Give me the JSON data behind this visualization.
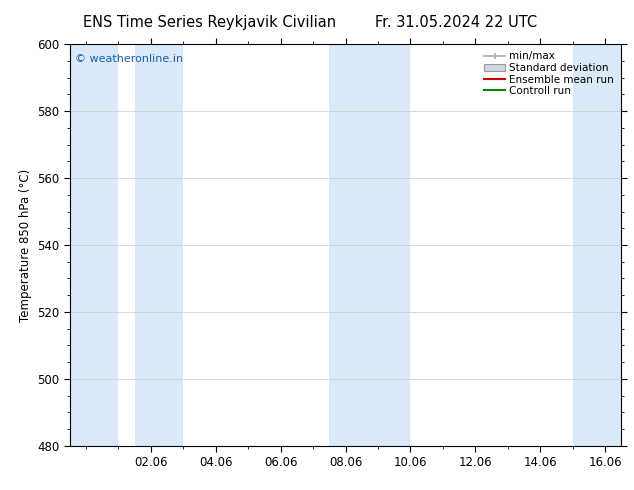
{
  "title_left": "ENS Time Series Reykjavik Civilian",
  "title_right": "Fr. 31.05.2024 22 UTC",
  "ylabel": "Temperature 850 hPa (°C)",
  "ylim": [
    480,
    600
  ],
  "yticks": [
    480,
    500,
    520,
    540,
    560,
    580,
    600
  ],
  "xlim_start": -0.5,
  "xlim_end": 16.5,
  "xtick_labels": [
    "02.06",
    "04.06",
    "06.06",
    "08.06",
    "10.06",
    "12.06",
    "14.06",
    "16.06"
  ],
  "xtick_positions": [
    2,
    4,
    6,
    8,
    10,
    12,
    14,
    16
  ],
  "watermark": "© weatheronline.in",
  "watermark_color": "#1a5fa8",
  "bg_color": "#ffffff",
  "plot_bg_color": "#ffffff",
  "band_color": "#d9e9f8",
  "band_ranges": [
    [
      -0.5,
      1.0
    ],
    [
      1.5,
      3.0
    ],
    [
      7.5,
      10.0
    ],
    [
      15.0,
      16.5
    ]
  ],
  "legend_labels": [
    "min/max",
    "Standard deviation",
    "Ensemble mean run",
    "Controll run"
  ],
  "legend_colors_line": [
    "#aaaaaa",
    "#cccccc",
    "#cc0000",
    "#008800"
  ],
  "title_fontsize": 10.5,
  "tick_fontsize": 8.5,
  "ylabel_fontsize": 8.5
}
